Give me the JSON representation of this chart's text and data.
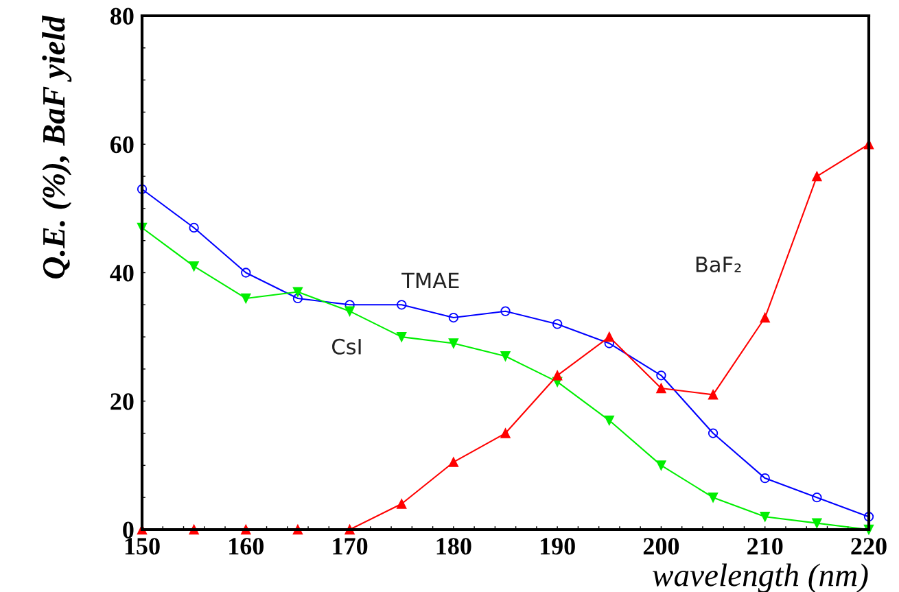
{
  "chart_data": {
    "type": "line",
    "xlabel": "wavelength (nm)",
    "ylabel": "Q.E. (%), BaF yield",
    "x": [
      150,
      155,
      160,
      165,
      170,
      175,
      180,
      185,
      190,
      195,
      200,
      205,
      210,
      215,
      220
    ],
    "series": [
      {
        "name": "TMAE",
        "color": "#0000ff",
        "marker": "circle",
        "values": [
          53,
          47,
          40,
          36,
          35,
          35,
          33,
          34,
          32,
          29,
          24,
          15,
          8,
          5,
          2
        ]
      },
      {
        "name": "CsI",
        "color": "#00ee00",
        "marker": "triangle_down",
        "values": [
          47,
          41,
          36,
          37,
          34,
          30,
          29,
          27,
          23,
          17,
          10,
          5,
          2,
          1,
          0
        ]
      },
      {
        "name": "BaF₂",
        "color": "#ff0000",
        "marker": "triangle",
        "values": [
          0,
          0,
          0,
          0,
          0,
          4,
          10.5,
          15,
          24,
          30,
          22,
          21,
          33,
          55,
          60
        ]
      }
    ],
    "xlim": [
      150,
      220
    ],
    "ylim": [
      0,
      80
    ],
    "xticks": [
      150,
      {
        "value": 152,
        "label": null
      },
      {
        "value": 154,
        "label": null
      },
      {
        "value": 156,
        "label": null
      },
      {
        "value": 158,
        "label": null
      },
      160,
      {
        "value": 162,
        "label": null
      },
      {
        "value": 164,
        "label": null
      },
      {
        "value": 166,
        "label": null
      },
      {
        "value": 168,
        "label": null
      },
      170,
      {
        "value": 172,
        "label": null
      },
      {
        "value": 174,
        "label": null
      },
      {
        "value": 176,
        "label": null
      },
      {
        "value": 178,
        "label": null
      },
      180,
      {
        "value": 182,
        "label": null
      },
      {
        "value": 184,
        "label": null
      },
      {
        "value": 186,
        "label": null
      },
      {
        "value": 188,
        "label": null
      },
      190,
      {
        "value": 192,
        "label": null
      },
      {
        "value": 194,
        "label": null
      },
      {
        "value": 196,
        "label": null
      },
      {
        "value": 198,
        "label": null
      },
      200,
      {
        "value": 202,
        "label": null
      },
      {
        "value": 204,
        "label": null
      },
      {
        "value": 206,
        "label": null
      },
      {
        "value": 208,
        "label": null
      },
      210,
      {
        "value": 212,
        "label": null
      },
      {
        "value": 214,
        "label": null
      },
      {
        "value": 216,
        "label": null
      },
      {
        "value": 218,
        "label": null
      },
      220
    ],
    "yticks": [
      0,
      {
        "value": 5,
        "label": null
      },
      {
        "value": 10,
        "label": null
      },
      {
        "value": 15,
        "label": null
      },
      20,
      {
        "value": 25,
        "label": null
      },
      {
        "value": 30,
        "label": null
      },
      {
        "value": 35,
        "label": null
      },
      40,
      {
        "value": 45,
        "label": null
      },
      {
        "value": 50,
        "label": null
      },
      {
        "value": 55,
        "label": null
      },
      60,
      {
        "value": 65,
        "label": null
      },
      {
        "value": 70,
        "label": null
      },
      {
        "value": 75,
        "label": null
      },
      80
    ],
    "grid": false,
    "legend": false,
    "line_style": "solid"
  }
}
